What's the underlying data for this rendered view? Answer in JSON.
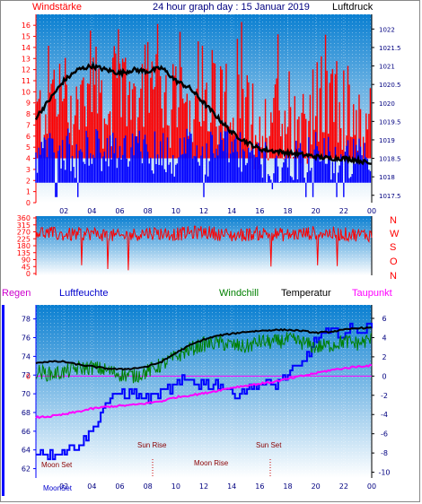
{
  "header": {
    "wind_speed_label": "Windstärke",
    "title": "24 hour graph day : 15 Januar 2019",
    "pressure_label": "Luftdruck"
  },
  "wind_direction_letters": [
    "N",
    "W",
    "S",
    "O",
    "N"
  ],
  "temp_header": {
    "rain": "Regen",
    "humidity": "Luftfeuchte",
    "windchill": "Windchill",
    "temperature": "Temperatur",
    "dewpoint": "Taupunkt"
  },
  "astro": {
    "moon_set": "Moon Set",
    "sun_rise": "Sun Rise",
    "moon_rise": "Moon Rise",
    "sun_set": "Sun Set",
    "bottom_overlap_label": "MoonSet"
  },
  "colors": {
    "red": "#ff0000",
    "blue": "#0000ff",
    "black": "#000000",
    "green": "#008000",
    "magenta": "#ff00ff",
    "sky_top": "#0a7fd1",
    "sky_bottom": "#ffffff"
  },
  "chart_data": [
    {
      "type": "line",
      "title": "24 hour graph day : 15 Januar 2019",
      "x_ticks": [
        "02",
        "04",
        "06",
        "08",
        "10",
        "12",
        "14",
        "16",
        "18",
        "20",
        "22",
        "00"
      ],
      "y_left_label": "Windstärke",
      "y_left_ticks": [
        0,
        1,
        2,
        3,
        4,
        5,
        6,
        7,
        8,
        9,
        10,
        11,
        12,
        13,
        14,
        15,
        16
      ],
      "y_right_label": "Luftdruck",
      "y_right_ticks": [
        1017.5,
        1018,
        1018.5,
        1019,
        1019.5,
        1020,
        1020.5,
        1021,
        1021.5,
        1022
      ],
      "series": [
        {
          "name": "Wind gusts",
          "axis": "left",
          "color": "#ff0000",
          "x": [
            0.5,
            1,
            2,
            3,
            4,
            5,
            6,
            7,
            8,
            9,
            10,
            11,
            12,
            13,
            14,
            15,
            16,
            17,
            18,
            19,
            20,
            21,
            22,
            23,
            24
          ],
          "y": [
            9,
            12,
            11,
            10,
            13,
            10,
            12,
            11,
            13,
            12,
            10,
            11,
            13,
            11,
            10,
            9,
            8,
            9,
            10,
            9,
            10,
            11,
            10,
            9,
            8
          ]
        },
        {
          "name": "Wind average",
          "axis": "left",
          "color": "#0000ff",
          "x": [
            0.5,
            1,
            2,
            3,
            4,
            5,
            6,
            7,
            8,
            9,
            10,
            11,
            12,
            13,
            14,
            15,
            16,
            17,
            18,
            19,
            20,
            21,
            22,
            23,
            24
          ],
          "y": [
            4,
            5,
            5,
            4,
            5,
            4,
            5,
            5,
            4,
            5,
            4,
            5,
            4,
            5,
            5,
            4,
            4,
            3,
            4,
            4,
            5,
            4,
            4,
            4,
            3
          ]
        },
        {
          "name": "Air pressure",
          "axis": "right",
          "color": "#000000",
          "x": [
            0,
            1,
            2,
            3,
            4,
            5,
            6,
            7,
            8,
            9,
            10,
            11,
            12,
            13,
            14,
            15,
            16,
            17,
            18,
            19,
            20,
            21,
            22,
            23,
            24
          ],
          "y": [
            1019.6,
            1020.1,
            1020.6,
            1020.9,
            1021.0,
            1020.9,
            1020.8,
            1020.9,
            1020.85,
            1020.95,
            1020.6,
            1020.4,
            1020.0,
            1019.6,
            1019.2,
            1018.95,
            1018.75,
            1018.7,
            1018.65,
            1018.6,
            1018.55,
            1018.5,
            1018.5,
            1018.45,
            1018.35
          ]
        }
      ]
    },
    {
      "type": "line",
      "title": "",
      "y_ticks": [
        0,
        45,
        90,
        135,
        180,
        225,
        270,
        315,
        360
      ],
      "y_right_labels": [
        "N",
        "W",
        "S",
        "O",
        "N"
      ],
      "series": [
        {
          "name": "Wind direction",
          "color": "#ff0000",
          "x": [
            0,
            2,
            4,
            6,
            8,
            10,
            12,
            14,
            16,
            18,
            20,
            22,
            24
          ],
          "y": [
            270,
            250,
            260,
            240,
            265,
            255,
            270,
            245,
            260,
            250,
            265,
            255,
            250
          ]
        }
      ]
    },
    {
      "type": "line",
      "title": "",
      "x_ticks": [
        "02",
        "04",
        "06",
        "08",
        "10",
        "12",
        "14",
        "16",
        "18",
        "20",
        "22",
        "00"
      ],
      "y_left_label": "Luftfeuchte",
      "y_left_ticks": [
        62,
        64,
        66,
        68,
        70,
        72,
        74,
        76,
        78
      ],
      "y_right_ticks": [
        -10,
        -8,
        -6,
        -4,
        -2,
        0,
        2,
        4,
        6
      ],
      "rain_marker": 0,
      "series": [
        {
          "name": "Luftfeuchte",
          "axis": "left",
          "color": "#0000ff",
          "x": [
            0,
            0.5,
            1,
            2,
            3,
            4,
            5,
            6,
            7,
            8,
            9,
            10,
            11,
            12,
            13,
            14,
            15,
            16,
            17,
            18,
            19,
            20,
            21,
            22,
            23,
            24
          ],
          "y": [
            63.5,
            64,
            63.5,
            64,
            64.5,
            66,
            69,
            70,
            70,
            69.5,
            70,
            71,
            71.5,
            71,
            71,
            70,
            70.5,
            71,
            71,
            72,
            73,
            76,
            76.5,
            76.5,
            77,
            77
          ]
        },
        {
          "name": "Windchill",
          "axis": "right",
          "color": "#008000",
          "x": [
            0,
            1,
            2,
            3,
            4,
            5,
            6,
            7,
            8,
            9,
            10,
            11,
            12,
            13,
            14,
            15,
            16,
            17,
            18,
            19,
            20,
            21,
            22,
            23,
            24
          ],
          "y": [
            0.5,
            0.2,
            0.4,
            0.8,
            0.9,
            0.6,
            0.2,
            0.0,
            0.5,
            1.2,
            2.0,
            2.8,
            3.3,
            3.5,
            3.2,
            3.0,
            3.6,
            3.5,
            3.8,
            3.5,
            3.0,
            3.2,
            3.6,
            3.4,
            3.8
          ]
        },
        {
          "name": "Temperatur",
          "axis": "right",
          "color": "#000000",
          "x": [
            0,
            1,
            2,
            3,
            4,
            5,
            6,
            7,
            8,
            9,
            10,
            11,
            12,
            13,
            14,
            15,
            16,
            17,
            18,
            19,
            20,
            21,
            22,
            23,
            24
          ],
          "y": [
            1.4,
            1.5,
            1.5,
            1.2,
            1.0,
            0.8,
            0.7,
            0.8,
            1.0,
            1.5,
            2.4,
            3.2,
            3.8,
            4.2,
            4.4,
            4.6,
            4.7,
            4.8,
            4.8,
            4.7,
            4.5,
            4.6,
            4.8,
            5.0,
            5.0
          ]
        },
        {
          "name": "Taupunkt",
          "axis": "right",
          "color": "#ff00ff",
          "x": [
            0,
            1,
            2,
            3,
            4,
            5,
            6,
            7,
            8,
            9,
            10,
            11,
            12,
            13,
            14,
            15,
            16,
            17,
            18,
            19,
            20,
            21,
            22,
            23,
            24
          ],
          "y": [
            -4.3,
            -4.2,
            -4.0,
            -3.7,
            -3.4,
            -3.2,
            -3.1,
            -3.0,
            -2.8,
            -2.6,
            -2.2,
            -2.0,
            -1.8,
            -1.5,
            -1.2,
            -1.0,
            -0.8,
            -0.6,
            -0.3,
            0.0,
            0.3,
            0.6,
            0.8,
            1.0,
            1.1
          ]
        }
      ]
    }
  ]
}
